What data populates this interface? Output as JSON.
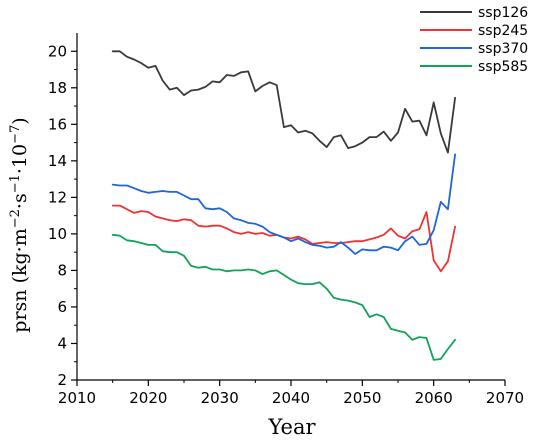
{
  "chart_data": {
    "type": "line",
    "xlabel": "Year",
    "ylabel": {
      "base": "prsn (kg·m",
      "sup1": "−2",
      "mid1": "·s",
      "sup2": "−1",
      "mid2": "·10",
      "sup3": "−7",
      "end": ")"
    },
    "xlim": [
      2010,
      2070
    ],
    "ylim": [
      2,
      21
    ],
    "xticks": [
      2010,
      2020,
      2030,
      2040,
      2050,
      2060,
      2070
    ],
    "yticks": [
      2,
      4,
      6,
      8,
      10,
      12,
      14,
      16,
      18,
      20
    ],
    "legend_position": "top-right",
    "x": [
      2015,
      2016,
      2017,
      2018,
      2019,
      2020,
      2021,
      2022,
      2023,
      2024,
      2025,
      2026,
      2027,
      2028,
      2029,
      2030,
      2031,
      2032,
      2033,
      2034,
      2035,
      2036,
      2037,
      2038,
      2039,
      2040,
      2041,
      2042,
      2043,
      2044,
      2045,
      2046,
      2047,
      2048,
      2049,
      2050,
      2051,
      2052,
      2053,
      2054,
      2055,
      2056,
      2057,
      2058,
      2059,
      2060,
      2061,
      2062,
      2063
    ],
    "series": [
      {
        "name": "ssp126",
        "color": "#3a3a3a",
        "values": [
          20.0,
          20.0,
          19.7,
          19.55,
          19.35,
          19.1,
          19.2,
          18.4,
          17.9,
          18.0,
          17.6,
          17.85,
          17.9,
          18.05,
          18.35,
          18.3,
          18.7,
          18.65,
          18.85,
          18.9,
          17.8,
          18.1,
          18.3,
          18.15,
          15.85,
          15.95,
          15.55,
          15.65,
          15.5,
          15.1,
          14.75,
          15.3,
          15.4,
          14.7,
          14.8,
          15.0,
          15.3,
          15.3,
          15.6,
          15.1,
          15.55,
          16.85,
          16.15,
          16.2,
          15.4,
          17.2,
          15.5,
          14.45,
          17.45
        ]
      },
      {
        "name": "ssp245",
        "color": "#ee3333",
        "values": [
          11.55,
          11.55,
          11.35,
          11.15,
          11.25,
          11.2,
          10.95,
          10.85,
          10.75,
          10.7,
          10.8,
          10.75,
          10.45,
          10.4,
          10.45,
          10.45,
          10.3,
          10.1,
          10.0,
          10.1,
          10.0,
          10.05,
          9.9,
          9.95,
          9.8,
          9.75,
          9.85,
          9.7,
          9.45,
          9.5,
          9.55,
          9.5,
          9.5,
          9.55,
          9.6,
          9.6,
          9.7,
          9.8,
          9.95,
          10.3,
          9.9,
          9.75,
          10.15,
          10.25,
          11.2,
          8.55,
          7.95,
          8.5,
          10.4
        ]
      },
      {
        "name": "ssp370",
        "color": "#1f66d6",
        "values": [
          12.7,
          12.65,
          12.65,
          12.5,
          12.35,
          12.25,
          12.3,
          12.35,
          12.3,
          12.3,
          12.1,
          11.9,
          11.9,
          11.4,
          11.35,
          11.4,
          11.2,
          10.85,
          10.75,
          10.6,
          10.55,
          10.4,
          10.1,
          9.95,
          9.8,
          9.6,
          9.75,
          9.55,
          9.4,
          9.35,
          9.25,
          9.3,
          9.55,
          9.25,
          8.9,
          9.15,
          9.1,
          9.1,
          9.3,
          9.25,
          9.1,
          9.6,
          9.85,
          9.4,
          9.45,
          10.2,
          11.75,
          11.35,
          14.35
        ]
      },
      {
        "name": "ssp585",
        "color": "#12a35a",
        "values": [
          9.95,
          9.9,
          9.65,
          9.6,
          9.5,
          9.4,
          9.4,
          9.05,
          9.0,
          9.0,
          8.8,
          8.25,
          8.15,
          8.2,
          8.05,
          8.05,
          7.95,
          8.0,
          8.0,
          8.05,
          8.0,
          7.8,
          7.95,
          8.0,
          7.75,
          7.5,
          7.3,
          7.25,
          7.25,
          7.35,
          7.0,
          6.5,
          6.4,
          6.35,
          6.25,
          6.1,
          5.45,
          5.6,
          5.45,
          4.8,
          4.7,
          4.6,
          4.2,
          4.35,
          4.3,
          3.1,
          3.15,
          3.7,
          4.2
        ]
      }
    ]
  }
}
